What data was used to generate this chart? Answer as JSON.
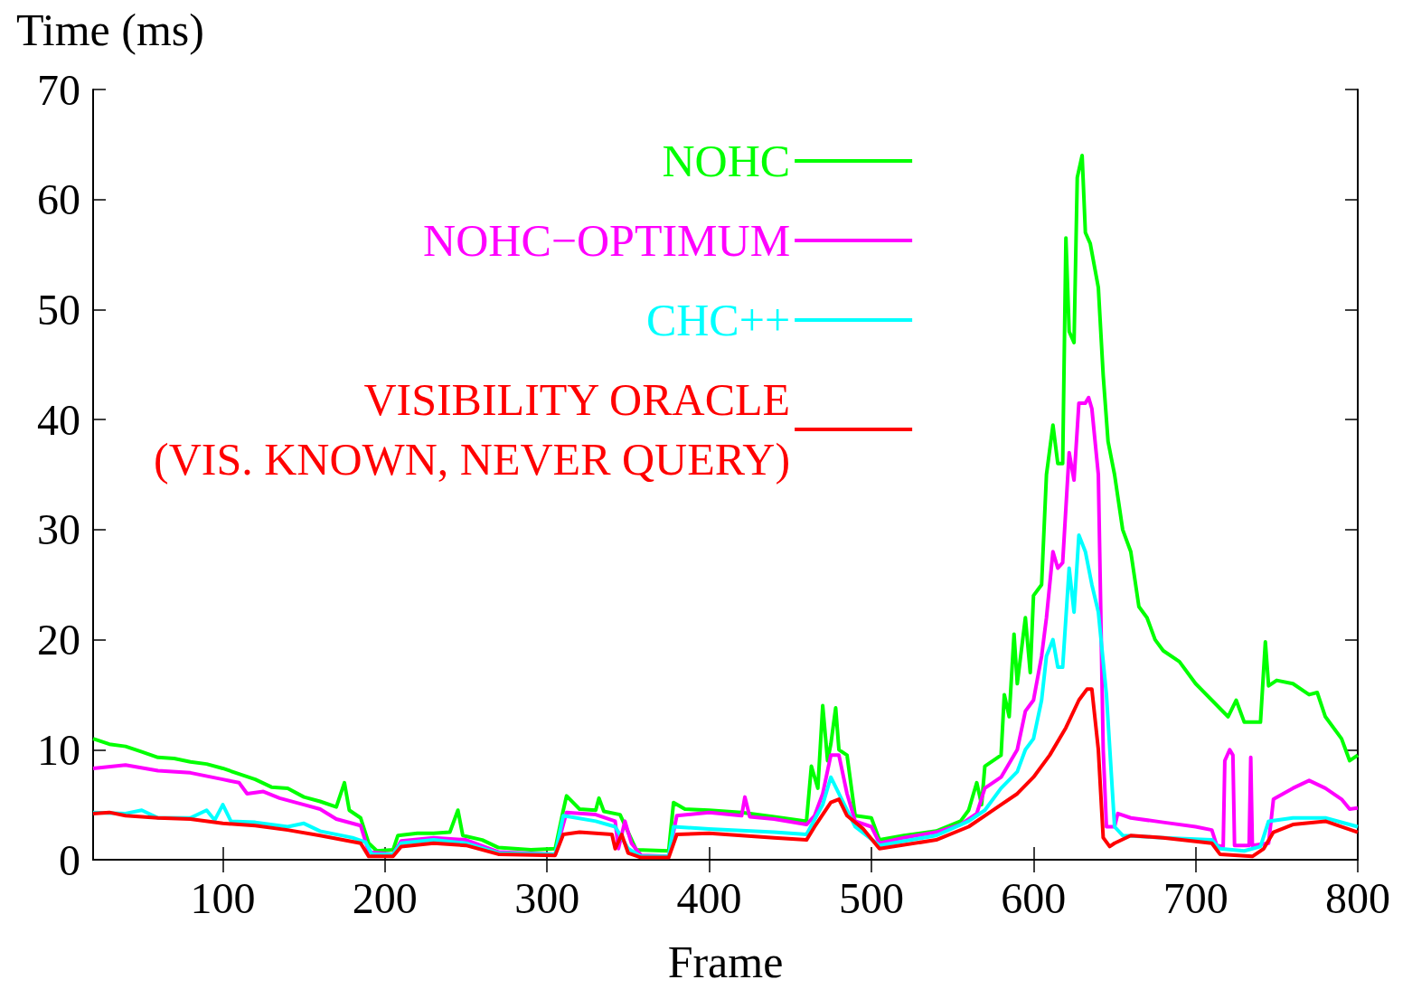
{
  "chart_data": {
    "type": "line",
    "xlabel": "Frame",
    "ylabel": "Time (ms)",
    "xlim": [
      20,
      800
    ],
    "xticks": [
      100,
      200,
      300,
      400,
      500,
      600,
      700,
      800
    ],
    "ylim": [
      0,
      70
    ],
    "yticks": [
      0,
      10,
      20,
      30,
      40,
      50,
      60,
      70
    ],
    "grid": false,
    "legend": "top left",
    "marker": "none",
    "line_style": "solid",
    "series": [
      {
        "name": "NOHC",
        "color": "#00ff00",
        "x": [
          20,
          30,
          40,
          50,
          60,
          70,
          80,
          90,
          100,
          110,
          120,
          130,
          140,
          150,
          160,
          170,
          175,
          178,
          185,
          190,
          195,
          205,
          208,
          220,
          230,
          240,
          245,
          248,
          260,
          270,
          290,
          305,
          310,
          312,
          320,
          330,
          332,
          335,
          345,
          350,
          355,
          375,
          378,
          385,
          400,
          420,
          440,
          460,
          463,
          467,
          470,
          473,
          475,
          478,
          480,
          485,
          490,
          500,
          505,
          520,
          540,
          555,
          560,
          565,
          568,
          570,
          580,
          582,
          585,
          588,
          590,
          595,
          598,
          600,
          605,
          608,
          612,
          615,
          618,
          620,
          622,
          625,
          627,
          630,
          632,
          635,
          640,
          643,
          646,
          650,
          655,
          660,
          665,
          670,
          675,
          680,
          690,
          700,
          710,
          720,
          725,
          730,
          740,
          743,
          745,
          750,
          760,
          770,
          775,
          780,
          790,
          795,
          800
        ],
        "values": [
          11,
          10.5,
          10.3,
          9.8,
          9.3,
          9.2,
          8.9,
          8.7,
          8.3,
          7.8,
          7.3,
          6.6,
          6.5,
          5.7,
          5.3,
          4.8,
          7,
          4.5,
          3.8,
          1.5,
          0.8,
          0.9,
          2.2,
          2.4,
          2.4,
          2.5,
          4.5,
          2.2,
          1.8,
          1.1,
          0.9,
          1,
          4.5,
          5.8,
          4.6,
          4.5,
          5.6,
          4.4,
          4.1,
          2.5,
          0.9,
          0.8,
          5.2,
          4.6,
          4.5,
          4.3,
          3.9,
          3.5,
          8.5,
          6.5,
          14,
          9,
          10.5,
          13.8,
          10,
          9.5,
          4,
          3.8,
          1.8,
          2.2,
          2.6,
          3.5,
          4.5,
          7,
          5,
          8.5,
          9.5,
          15,
          13,
          20.5,
          16,
          22,
          17,
          24,
          25,
          35,
          39.5,
          36,
          36,
          56.5,
          48,
          47,
          62,
          64,
          57,
          56,
          52,
          44,
          38,
          35,
          30,
          28,
          23,
          22,
          20,
          19,
          18,
          16,
          14.5,
          13,
          14.5,
          12.5,
          12.5,
          19.8,
          15.8,
          16.3,
          16,
          15,
          15.2,
          13,
          11,
          9,
          9.5
        ]
      },
      {
        "name": "NOHC−OPTIMUM",
        "color": "#ff00ff",
        "x": [
          20,
          40,
          60,
          80,
          100,
          110,
          115,
          125,
          135,
          150,
          160,
          170,
          185,
          190,
          205,
          210,
          230,
          250,
          270,
          305,
          312,
          330,
          342,
          344,
          348,
          352,
          358,
          375,
          380,
          400,
          420,
          422,
          425,
          440,
          460,
          465,
          470,
          475,
          480,
          485,
          490,
          500,
          505,
          520,
          540,
          555,
          565,
          570,
          580,
          590,
          595,
          600,
          605,
          608,
          612,
          615,
          618,
          622,
          625,
          628,
          632,
          634,
          636,
          640,
          643,
          645,
          650,
          652,
          660,
          680,
          700,
          710,
          713,
          717,
          718,
          721,
          723,
          724,
          733,
          734,
          735,
          745,
          748,
          760,
          770,
          780,
          790,
          795,
          800
        ],
        "values": [
          8.3,
          8.6,
          8.1,
          7.9,
          7.3,
          7,
          6,
          6.2,
          5.6,
          5,
          4.6,
          3.7,
          3.1,
          0.7,
          0.5,
          1.7,
          2,
          1.8,
          0.7,
          0.5,
          4.3,
          4.1,
          3.5,
          1,
          3.5,
          1.5,
          0.4,
          0.3,
          4,
          4.3,
          4,
          5.7,
          3.9,
          3.7,
          3.2,
          4,
          6,
          9.5,
          9.5,
          6,
          3.5,
          3,
          1.5,
          2,
          2.5,
          3.2,
          4.2,
          6.5,
          7.5,
          10,
          13.5,
          14.5,
          18.5,
          22,
          28,
          26.5,
          27,
          37,
          34.5,
          41.5,
          41.5,
          42,
          41,
          35,
          10,
          3,
          3,
          4.2,
          3.8,
          3.4,
          3,
          2.7,
          1.3,
          1.2,
          9,
          10,
          9.5,
          1.3,
          1.3,
          9.3,
          1.3,
          1.5,
          5.5,
          6.5,
          7.2,
          6.5,
          5.5,
          4.6,
          4.7
        ]
      },
      {
        "name": "CHC++",
        "color": "#00ffff",
        "x": [
          20,
          40,
          50,
          60,
          80,
          90,
          95,
          100,
          105,
          120,
          140,
          150,
          160,
          180,
          188,
          192,
          205,
          210,
          230,
          250,
          270,
          305,
          310,
          330,
          342,
          350,
          358,
          375,
          378,
          400,
          440,
          460,
          470,
          475,
          480,
          490,
          505,
          540,
          560,
          570,
          580,
          590,
          595,
          600,
          605,
          608,
          612,
          615,
          618,
          622,
          625,
          628,
          632,
          636,
          640,
          645,
          650,
          655,
          680,
          710,
          715,
          730,
          740,
          745,
          760,
          780,
          800
        ],
        "values": [
          4.3,
          4.2,
          4.5,
          3.8,
          3.8,
          4.5,
          3.6,
          5,
          3.5,
          3.4,
          3,
          3.3,
          2.6,
          2,
          1.6,
          0.5,
          0.5,
          1.5,
          1.8,
          1.5,
          0.6,
          0.5,
          4,
          3.5,
          3,
          1,
          0.3,
          0.3,
          3,
          2.8,
          2.5,
          2.3,
          5,
          7.5,
          6,
          3,
          1.3,
          2.2,
          3.5,
          4.5,
          6.5,
          8,
          10,
          11,
          14.5,
          18.5,
          20,
          17.5,
          17.5,
          26.5,
          22.5,
          29.5,
          28,
          25,
          22.5,
          15,
          3,
          2.2,
          2,
          1.8,
          1,
          0.8,
          1.2,
          3.5,
          3.8,
          3.8,
          3
        ]
      },
      {
        "name": "VISIBILITY ORACLE\n(VIS. KNOWN, NEVER QUERY)",
        "color": "#ff0000",
        "x": [
          20,
          30,
          40,
          60,
          80,
          100,
          120,
          140,
          160,
          185,
          190,
          205,
          210,
          230,
          250,
          270,
          305,
          310,
          320,
          340,
          342,
          346,
          350,
          358,
          375,
          380,
          400,
          440,
          460,
          465,
          475,
          480,
          485,
          495,
          505,
          540,
          560,
          570,
          580,
          590,
          600,
          610,
          620,
          628,
          633,
          636,
          640,
          643,
          647,
          650,
          660,
          680,
          710,
          715,
          735,
          742,
          748,
          760,
          780,
          800
        ],
        "values": [
          4.2,
          4.3,
          4,
          3.8,
          3.7,
          3.3,
          3.1,
          2.7,
          2.2,
          1.5,
          0.3,
          0.3,
          1.2,
          1.5,
          1.3,
          0.5,
          0.4,
          2.3,
          2.5,
          2.3,
          1,
          2.3,
          0.6,
          0.2,
          0.2,
          2.3,
          2.4,
          2,
          1.8,
          3,
          5.2,
          5.5,
          4,
          2.8,
          1,
          1.8,
          3,
          4,
          5,
          6,
          7.5,
          9.5,
          12,
          14.5,
          15.5,
          15.5,
          10,
          2,
          1.2,
          1.5,
          2.2,
          2,
          1.5,
          0.5,
          0.3,
          1,
          2.5,
          3.2,
          3.5,
          2.5
        ]
      }
    ]
  }
}
